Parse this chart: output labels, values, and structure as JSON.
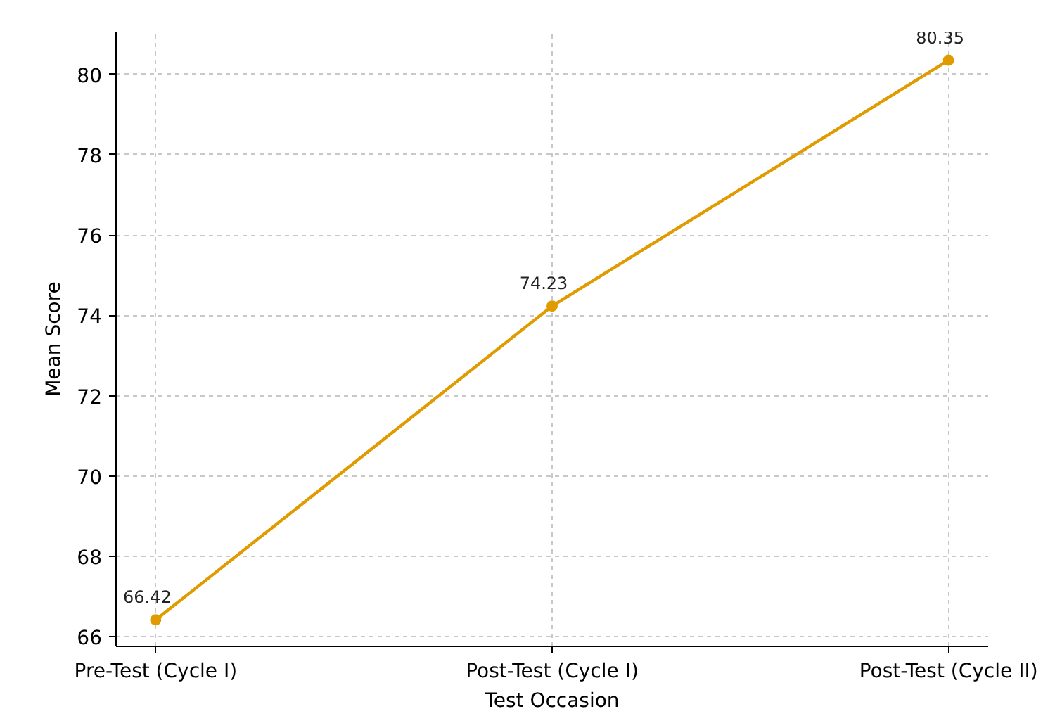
{
  "chart_data": {
    "type": "line",
    "xlabel": "Test Occasion",
    "ylabel": "Mean Score",
    "categories": [
      "Pre-Test (Cycle I)",
      "Post-Test (Cycle I)",
      "Post-Test (Cycle II)"
    ],
    "series": [
      {
        "color": "#e09b00",
        "values": [
          66.42,
          74.23,
          80.35
        ]
      }
    ],
    "ylim": [
      65.76,
      81.06
    ],
    "yticks": [
      66,
      68,
      70,
      72,
      74,
      76,
      78,
      80
    ],
    "grid": true,
    "marker": "circle",
    "line_style": "solid",
    "data_labels": true
  }
}
